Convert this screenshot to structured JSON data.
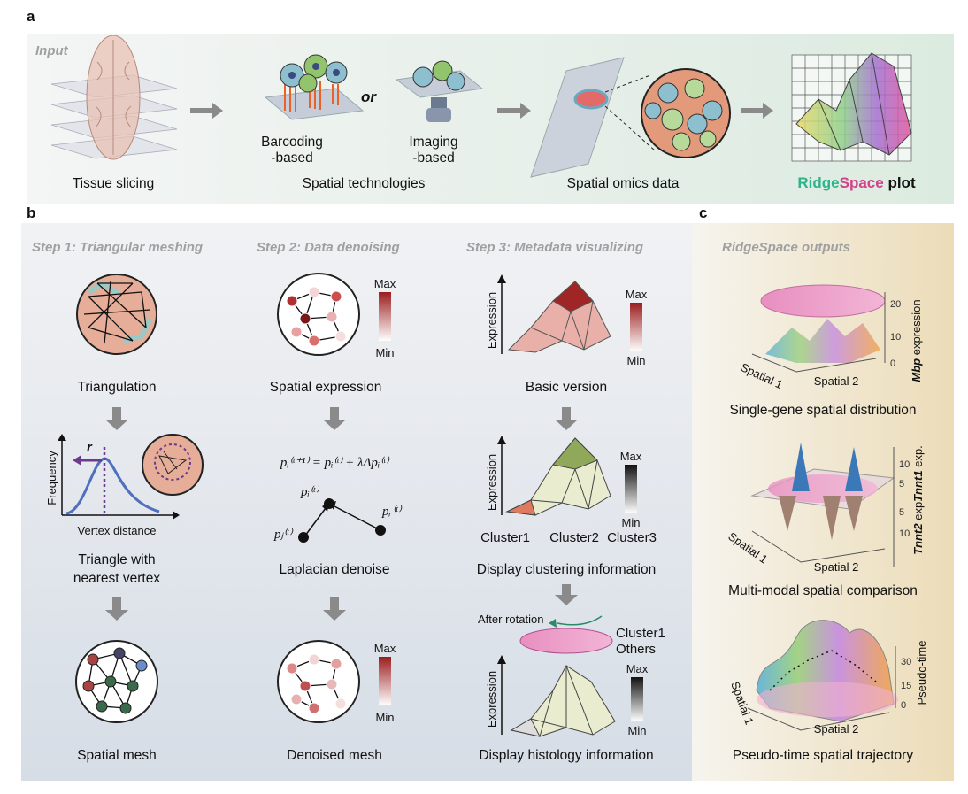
{
  "panel_a": {
    "label": "a",
    "input": "Input",
    "connector": "or",
    "captions": [
      "Tissue slicing",
      "Spatial technologies",
      "Spatial omics data"
    ],
    "technologies": [
      {
        "lines": [
          "Barcoding",
          "-based"
        ]
      },
      {
        "lines": [
          "Imaging",
          "-based"
        ]
      }
    ],
    "plot_caption": {
      "ridge": "Ridge",
      "space": "Space",
      "plot": "plot"
    }
  },
  "panel_b": {
    "label": "b",
    "steps": [
      {
        "title": "Step 1: Triangular meshing",
        "items": [
          [
            "Triangulation"
          ],
          [
            "Triangle with",
            "nearest vertex"
          ],
          [
            "Spatial mesh"
          ]
        ],
        "r": "r",
        "y_label": "Frequency",
        "x_label": "Vertex distance"
      },
      {
        "title": "Step 2: Data denoising",
        "items": [
          [
            "Spatial expression"
          ],
          [
            "Laplacian denoise"
          ],
          [
            "Denoised mesh"
          ]
        ],
        "equation": "pᵢ⁽ᵗ⁺¹⁾ = pᵢ⁽ᵗ⁾ + λΔpᵢ⁽ᵗ⁾",
        "nodes": [
          "pᵢ⁽ᵗ⁾",
          "pⱼ⁽ᵗ⁾",
          "pᵣ⁽ᵗ⁾"
        ],
        "scales": [
          [
            "Max",
            "Min"
          ],
          [
            "Max",
            "Min"
          ]
        ]
      },
      {
        "title": "Step 3: Metadata visualizing",
        "items": [
          [
            "Basic version"
          ],
          [
            "Display clustering information"
          ],
          [
            "Display histology information"
          ]
        ],
        "y_labels": [
          "Expression",
          "Expression",
          "Expression"
        ],
        "clusters": [
          "Cluster1",
          "Cluster2",
          "Cluster3"
        ],
        "rotation": "After rotation",
        "legend": [
          "Cluster1",
          "Others"
        ],
        "scales": [
          [
            "Max",
            "Min"
          ],
          [
            "Max",
            "Min"
          ],
          [
            "Max",
            "Min"
          ]
        ]
      }
    ]
  },
  "panel_c": {
    "label": "c",
    "title": "RidgeSpace outputs",
    "outputs": [
      {
        "caption": "Single-gene spatial distribution",
        "x_label": "Spatial 2",
        "y_label": "Spatial 1",
        "z_labels": [
          {
            "gene": "Mbp",
            "text": "expression"
          }
        ],
        "z_ticks": [
          "20",
          "10",
          "0"
        ]
      },
      {
        "caption": "Multi-modal spatial comparison",
        "x_label": "Spatial 2",
        "y_label": "Spatial 1",
        "z_labels": [
          {
            "gene": "Tnnt1",
            "text": "exp."
          },
          {
            "gene": "Tnnt2",
            "text": "exp."
          }
        ],
        "z_ticks": [
          "10",
          "5",
          "5",
          "10"
        ]
      },
      {
        "caption": "Pseudo-time spatial trajectory",
        "x_label": "Spatial 2",
        "y_label": "Spatial 1",
        "z_labels": [
          {
            "gene": "",
            "text": "Pseudo-time"
          }
        ],
        "z_ticks": [
          "30",
          "15",
          "0"
        ]
      }
    ]
  }
}
